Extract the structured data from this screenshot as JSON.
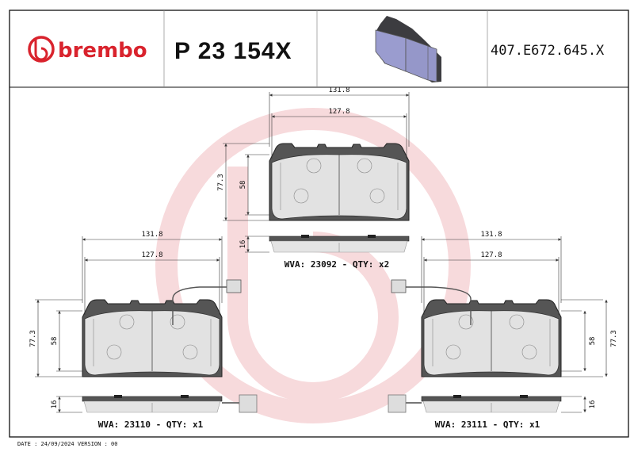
{
  "header": {
    "brand": "brembo",
    "part_number": "P 23 154X",
    "reference_code": "407.E672.645.X"
  },
  "colors": {
    "brand": "#d9232d",
    "watermark": "#f6d5d8",
    "pad_preview": "#9a9ccf"
  },
  "pads": [
    {
      "width_outer": "131.8",
      "width_inner": "127.8",
      "height_outer": "77.3",
      "height_inner": "58",
      "thickness": "16",
      "label": "WVA: 23092 - QTY: x2",
      "wear_sensor": false
    },
    {
      "width_outer": "131.8",
      "width_inner": "127.8",
      "height_outer": "77.3",
      "height_inner": "58",
      "thickness": "16",
      "label": "WVA: 23110 - QTY: x1",
      "wear_sensor": true
    },
    {
      "width_outer": "131.8",
      "width_inner": "127.8",
      "height_outer": "77.3",
      "height_inner": "58",
      "thickness": "16",
      "label": "WVA: 23111 - QTY: x1",
      "wear_sensor": true
    }
  ],
  "footer": "DATE : 24/09/2024 VERSION : 00"
}
